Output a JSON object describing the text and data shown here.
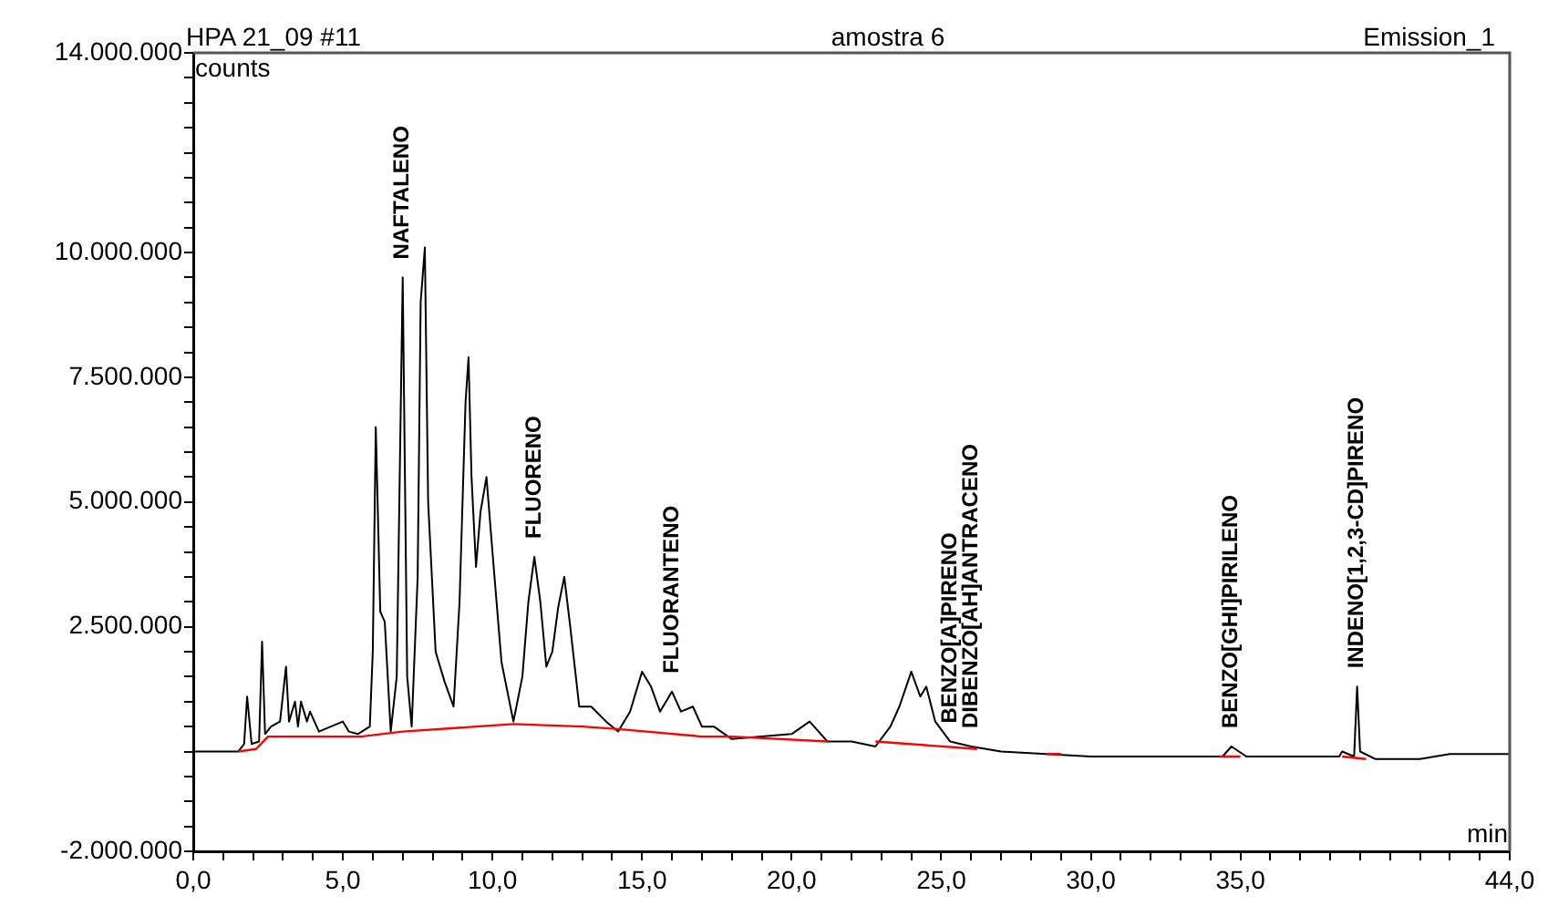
{
  "chart_data": {
    "type": "line",
    "title": "HPA 21_09 #11",
    "subtitle": "amostra 6",
    "ylabel": "counts",
    "xlabel": "min",
    "legend": false,
    "grid": false,
    "marker": "none",
    "annotations": [
      "Emission_1",
      {
        "text": "NAFTALENO",
        "x": 7.0,
        "y": 9500000
      },
      {
        "text": "FLUORENO",
        "x": 11.4,
        "y": 3900000
      },
      {
        "text": "FLUORANTENO",
        "x": 16.0,
        "y": 1200000
      },
      {
        "text": "BENZO[A]PIRENO",
        "x": 25.3,
        "y": 200000
      },
      {
        "text": "DIBENZO[AH]ANTRACENO",
        "x": 26.0,
        "y": 100000
      },
      {
        "text": "BENZO[GHI]PIRILENO",
        "x": 34.7,
        "y": 100000
      },
      {
        "text": "INDENO[1,2,3-CD]PIRENO",
        "x": 38.9,
        "y": 1300000
      }
    ],
    "series": [
      {
        "color": "#000000",
        "x": [
          0,
          1.5,
          1.7,
          1.8,
          1.95,
          2.2,
          2.3,
          2.4,
          2.6,
          2.9,
          3.1,
          3.2,
          3.4,
          3.5,
          3.6,
          3.8,
          3.9,
          4.2,
          4.6,
          5.0,
          5.2,
          5.5,
          5.9,
          6.0,
          6.1,
          6.25,
          6.4,
          6.6,
          6.8,
          7.0,
          7.15,
          7.3,
          7.5,
          7.6,
          7.74,
          7.85,
          8.1,
          8.4,
          8.7,
          8.9,
          9.1,
          9.2,
          9.3,
          9.45,
          9.6,
          9.8,
          10.0,
          10.3,
          10.7,
          11.0,
          11.2,
          11.4,
          11.6,
          11.8,
          12.0,
          12.2,
          12.4,
          12.6,
          12.9,
          13.3,
          13.8,
          14.2,
          14.6,
          15.0,
          15.3,
          15.6,
          16.0,
          16.3,
          16.7,
          17.0,
          17.4,
          18.0,
          19.0,
          20.0,
          20.6,
          21.2,
          22.0,
          22.8,
          23.3,
          23.6,
          24.0,
          24.3,
          24.5,
          24.8,
          25.3,
          26.0,
          27.0,
          28.5,
          30.0,
          34.4,
          34.7,
          35.2,
          38.3,
          38.4,
          38.8,
          38.9,
          39.0,
          39.5,
          41.0,
          42.0,
          44.0
        ],
        "values": [
          0,
          0,
          150000,
          1100000,
          150000,
          200000,
          2200000,
          350000,
          500000,
          600000,
          1700000,
          600000,
          1000000,
          500000,
          1000000,
          600000,
          800000,
          400000,
          500000,
          600000,
          400000,
          350000,
          500000,
          2000000,
          6500000,
          2800000,
          2600000,
          400000,
          1500000,
          9500000,
          1500000,
          500000,
          3500000,
          9000000,
          10100000,
          5000000,
          2000000,
          1400000,
          900000,
          3000000,
          7000000,
          7900000,
          5500000,
          3700000,
          4800000,
          5500000,
          4000000,
          1800000,
          600000,
          1500000,
          3000000,
          3900000,
          3000000,
          1700000,
          2000000,
          2900000,
          3500000,
          2500000,
          900000,
          900000,
          600000,
          400000,
          800000,
          1600000,
          1300000,
          800000,
          1200000,
          800000,
          900000,
          500000,
          500000,
          250000,
          300000,
          350000,
          600000,
          200000,
          200000,
          100000,
          500000,
          900000,
          1600000,
          1100000,
          1300000,
          600000,
          200000,
          100000,
          0,
          -50000,
          -100000,
          -100000,
          100000,
          -100000,
          -100000,
          0,
          -100000,
          1300000,
          0,
          -150000,
          -150000,
          -50000,
          -50000
        ]
      },
      {
        "color": "#ff0000",
        "x": [
          1.5,
          2.1,
          2.5,
          5.6,
          7.0,
          10.7,
          13.0,
          14.2,
          17.0,
          18.0,
          21.2,
          22.0,
          22.8,
          26.2,
          27.0,
          28.5,
          29.0,
          31.0,
          34.3,
          35.0,
          37.0,
          38.4,
          39.2
        ],
        "values": [
          0,
          50000,
          300000,
          300000,
          400000,
          550000,
          500000,
          450000,
          300000,
          300000,
          200000,
          null,
          200000,
          50000,
          null,
          -50000,
          -50000,
          null,
          -100000,
          -100000,
          null,
          -100000,
          -150000
        ]
      }
    ],
    "xlim": [
      0,
      44
    ],
    "xticks": [
      {
        "value": 0,
        "label": "0,0"
      },
      {
        "value": 1,
        "label": null
      },
      {
        "value": 2,
        "label": null
      },
      {
        "value": 3,
        "label": null
      },
      {
        "value": 4,
        "label": null
      },
      {
        "value": 5,
        "label": "5,0"
      },
      {
        "value": 6,
        "label": null
      },
      {
        "value": 7,
        "label": null
      },
      {
        "value": 8,
        "label": null
      },
      {
        "value": 9,
        "label": null
      },
      {
        "value": 10,
        "label": "10,0"
      },
      {
        "value": 11,
        "label": null
      },
      {
        "value": 12,
        "label": null
      },
      {
        "value": 13,
        "label": null
      },
      {
        "value": 14,
        "label": null
      },
      {
        "value": 15,
        "label": "15,0"
      },
      {
        "value": 16,
        "label": null
      },
      {
        "value": 17,
        "label": null
      },
      {
        "value": 18,
        "label": null
      },
      {
        "value": 19,
        "label": null
      },
      {
        "value": 20,
        "label": "20,0"
      },
      {
        "value": 21,
        "label": null
      },
      {
        "value": 22,
        "label": null
      },
      {
        "value": 23,
        "label": null
      },
      {
        "value": 24,
        "label": null
      },
      {
        "value": 25,
        "label": "25,0"
      },
      {
        "value": 26,
        "label": null
      },
      {
        "value": 27,
        "label": null
      },
      {
        "value": 28,
        "label": null
      },
      {
        "value": 29,
        "label": null
      },
      {
        "value": 30,
        "label": "30,0"
      },
      {
        "value": 31,
        "label": null
      },
      {
        "value": 32,
        "label": null
      },
      {
        "value": 33,
        "label": null
      },
      {
        "value": 34,
        "label": null
      },
      {
        "value": 35,
        "label": "35,0"
      },
      {
        "value": 36,
        "label": null
      },
      {
        "value": 37,
        "label": null
      },
      {
        "value": 38,
        "label": null
      },
      {
        "value": 39,
        "label": null
      },
      {
        "value": 40,
        "label": null
      },
      {
        "value": 41,
        "label": null
      },
      {
        "value": 42,
        "label": null
      },
      {
        "value": 43,
        "label": null
      },
      {
        "value": 44,
        "label": "44,0"
      }
    ],
    "ylim": [
      -2000000,
      14000000
    ],
    "yticks": [
      {
        "value": -2000000,
        "label": "-2.000.000"
      },
      {
        "value": -1500000,
        "label": null
      },
      {
        "value": -1000000,
        "label": null
      },
      {
        "value": -500000,
        "label": null
      },
      {
        "value": 0,
        "label": null
      },
      {
        "value": 500000,
        "label": null
      },
      {
        "value": 1000000,
        "label": null
      },
      {
        "value": 1500000,
        "label": null
      },
      {
        "value": 2000000,
        "label": null
      },
      {
        "value": 2500000,
        "label": "2.500.000"
      },
      {
        "value": 3000000,
        "label": null
      },
      {
        "value": 3500000,
        "label": null
      },
      {
        "value": 4000000,
        "label": null
      },
      {
        "value": 4500000,
        "label": null
      },
      {
        "value": 5000000,
        "label": "5.000.000"
      },
      {
        "value": 5500000,
        "label": null
      },
      {
        "value": 6000000,
        "label": null
      },
      {
        "value": 6500000,
        "label": null
      },
      {
        "value": 7000000,
        "label": null
      },
      {
        "value": 7500000,
        "label": "7.500.000"
      },
      {
        "value": 8000000,
        "label": null
      },
      {
        "value": 8500000,
        "label": null
      },
      {
        "value": 9000000,
        "label": null
      },
      {
        "value": 9500000,
        "label": null
      },
      {
        "value": 10000000,
        "label": "10.000.000"
      },
      {
        "value": 10500000,
        "label": null
      },
      {
        "value": 11000000,
        "label": null
      },
      {
        "value": 11500000,
        "label": null
      },
      {
        "value": 12000000,
        "label": null
      },
      {
        "value": 12500000,
        "label": null
      },
      {
        "value": 13000000,
        "label": null
      },
      {
        "value": 13500000,
        "label": null
      },
      {
        "value": 14000000,
        "label": "14.000.000"
      }
    ]
  }
}
